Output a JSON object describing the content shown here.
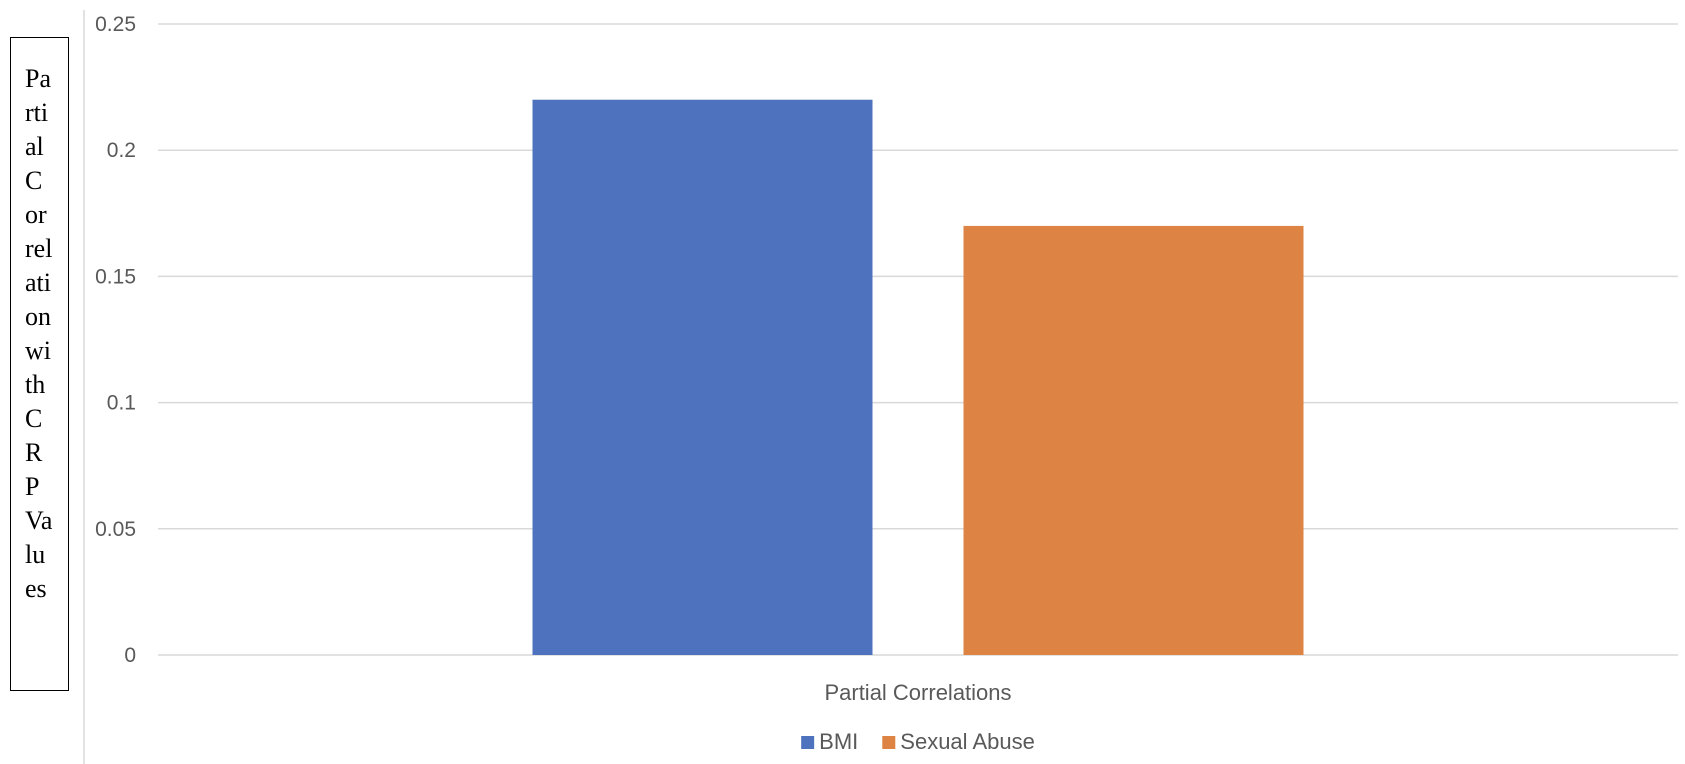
{
  "chart_data": {
    "type": "bar",
    "categories": [
      "Partial Correlations"
    ],
    "series": [
      {
        "name": "BMI",
        "values": [
          0.22
        ],
        "color": "#4F72BE"
      },
      {
        "name": "Sexual Abuse",
        "values": [
          0.17
        ],
        "color": "#DD8344"
      }
    ],
    "ylabel": "Partial Correlation with CRP Values",
    "xlabel": "",
    "title": "",
    "ylim": [
      0,
      0.25
    ],
    "yticks": [
      "0",
      "0.05",
      "0.1",
      "0.15",
      "0.2",
      "0.25"
    ],
    "grid": true,
    "legend": "bottom-center"
  }
}
